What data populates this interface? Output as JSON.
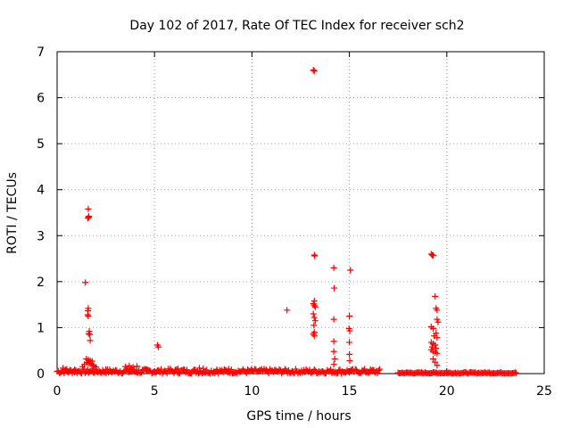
{
  "chart_data": {
    "type": "scatter",
    "title": "Day 102 of 2017, Rate Of TEC Index for receiver sch2",
    "xlabel": "GPS time / hours",
    "ylabel": "ROTI / TECUs",
    "xlim": [
      0,
      25
    ],
    "ylim": [
      0,
      7
    ],
    "x_ticks": [
      "0",
      "5",
      "10",
      "15",
      "20",
      "25"
    ],
    "y_ticks": [
      "0",
      "1",
      "2",
      "3",
      "4",
      "5",
      "6",
      "7"
    ],
    "grid": true,
    "marker": "+",
    "color": "#ff0000",
    "series": [
      {
        "points": [
          [
            13.15,
            6.6
          ],
          [
            13.2,
            6.58
          ],
          [
            1.6,
            3.58
          ],
          [
            1.62,
            3.42
          ],
          [
            1.63,
            3.4
          ],
          [
            1.58,
            3.38
          ],
          [
            13.2,
            2.58
          ],
          [
            13.22,
            2.56
          ],
          [
            19.2,
            2.6
          ],
          [
            19.25,
            2.58
          ],
          [
            19.3,
            2.57
          ],
          [
            14.2,
            2.3
          ],
          [
            15.05,
            2.25
          ],
          [
            1.45,
            1.98
          ],
          [
            14.22,
            1.86
          ],
          [
            19.4,
            1.68
          ],
          [
            13.2,
            1.58
          ],
          [
            13.15,
            1.52
          ],
          [
            13.2,
            1.48
          ],
          [
            13.25,
            1.45
          ],
          [
            19.45,
            1.42
          ],
          [
            19.5,
            1.38
          ],
          [
            1.6,
            1.42
          ],
          [
            1.58,
            1.37
          ],
          [
            11.8,
            1.38
          ],
          [
            1.57,
            1.28
          ],
          [
            1.6,
            1.25
          ],
          [
            13.15,
            1.3
          ],
          [
            13.2,
            1.22
          ],
          [
            13.25,
            1.15
          ],
          [
            13.18,
            1.05
          ],
          [
            15.0,
            1.25
          ],
          [
            14.2,
            1.18
          ],
          [
            19.5,
            1.18
          ],
          [
            19.55,
            1.12
          ],
          [
            19.2,
            1.02
          ],
          [
            19.3,
            0.98
          ],
          [
            14.98,
            0.98
          ],
          [
            15.02,
            0.93
          ],
          [
            1.65,
            0.92
          ],
          [
            1.62,
            0.87
          ],
          [
            1.68,
            0.85
          ],
          [
            13.2,
            0.9
          ],
          [
            13.15,
            0.86
          ],
          [
            13.2,
            0.82
          ],
          [
            19.45,
            0.88
          ],
          [
            19.35,
            0.82
          ],
          [
            19.5,
            0.78
          ],
          [
            1.7,
            0.72
          ],
          [
            14.2,
            0.7
          ],
          [
            15.0,
            0.68
          ],
          [
            19.2,
            0.68
          ],
          [
            19.3,
            0.65
          ],
          [
            19.4,
            0.62
          ],
          [
            19.25,
            0.58
          ],
          [
            19.45,
            0.55
          ],
          [
            19.2,
            0.52
          ],
          [
            19.3,
            0.48
          ],
          [
            19.4,
            0.46
          ],
          [
            19.5,
            0.44
          ],
          [
            5.15,
            0.62
          ],
          [
            5.2,
            0.58
          ],
          [
            14.2,
            0.48
          ],
          [
            15.0,
            0.42
          ],
          [
            14.25,
            0.32
          ],
          [
            15.02,
            0.28
          ],
          [
            14.2,
            0.2
          ],
          [
            19.3,
            0.32
          ],
          [
            19.4,
            0.25
          ],
          [
            19.5,
            0.18
          ],
          [
            1.5,
            0.32
          ],
          [
            1.6,
            0.3
          ],
          [
            1.7,
            0.28
          ],
          [
            1.8,
            0.27
          ],
          [
            1.55,
            0.24
          ],
          [
            1.65,
            0.22
          ],
          [
            1.75,
            0.2
          ],
          [
            1.85,
            0.18
          ],
          [
            1.4,
            0.2
          ],
          [
            1.9,
            0.16
          ],
          [
            2.0,
            0.14
          ],
          [
            1.3,
            0.15
          ],
          [
            3.5,
            0.15
          ],
          [
            3.7,
            0.17
          ],
          [
            3.9,
            0.14
          ],
          [
            4.1,
            0.16
          ],
          [
            3.8,
            0.12
          ],
          [
            0.3,
            0.12
          ],
          [
            0.5,
            0.1
          ],
          [
            7.3,
            0.12
          ],
          [
            7.5,
            0.11
          ],
          [
            8.2,
            0.09
          ],
          [
            8.8,
            0.1
          ],
          [
            5.8,
            0.1
          ],
          [
            6.2,
            0.11
          ],
          [
            6.5,
            0.09
          ],
          [
            0.9,
            0.09
          ],
          [
            2.5,
            0.09
          ],
          [
            4.6,
            0.08
          ]
        ]
      }
    ],
    "dense_baseline": [
      {
        "from": 0.0,
        "to": 16.6,
        "max": 0.1
      },
      {
        "from": 17.5,
        "to": 23.6,
        "max": 0.03
      }
    ]
  }
}
